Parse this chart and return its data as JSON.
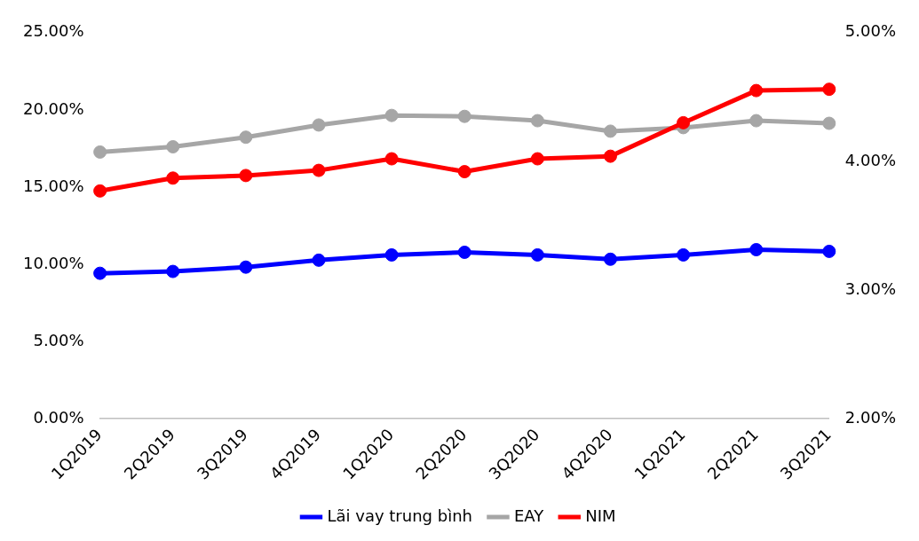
{
  "chart_data": {
    "type": "line",
    "categories": [
      "1Q2019",
      "2Q2019",
      "3Q2019",
      "4Q2019",
      "1Q2020",
      "2Q2020",
      "3Q2020",
      "4Q2020",
      "1Q2021",
      "2Q2021",
      "3Q2021"
    ],
    "series": [
      {
        "name": "Lãi vay trung bình",
        "color": "#0000ff",
        "values": [
          9.42,
          9.54,
          9.82,
          10.27,
          10.61,
          10.78,
          10.61,
          10.33,
          10.61,
          10.95,
          10.84
        ]
      },
      {
        "name": "EAY",
        "color": "#a6a6a6",
        "values": [
          17.27,
          17.61,
          18.23,
          19.02,
          19.64,
          19.58,
          19.3,
          18.62,
          18.85,
          19.3,
          19.13
        ]
      },
      {
        "name": "NIM",
        "color": "#ff0000",
        "axis": "y2",
        "values": [
          3.77,
          3.87,
          3.89,
          3.93,
          4.02,
          3.92,
          4.02,
          4.04,
          4.3,
          4.55,
          4.56
        ]
      }
    ],
    "ylim": [
      0,
      25
    ],
    "yticks": [
      {
        "value": 0,
        "label": "0.00%"
      },
      {
        "value": 5,
        "label": "5.00%"
      },
      {
        "value": 10,
        "label": "10.00%"
      },
      {
        "value": 15,
        "label": "15.00%"
      },
      {
        "value": 20,
        "label": "20.00%"
      },
      {
        "value": 25,
        "label": "25.00%"
      }
    ],
    "y2lim": [
      2,
      5
    ],
    "y2ticks": [
      {
        "value": 2,
        "label": "2.00%"
      },
      {
        "value": 3,
        "label": "3.00%"
      },
      {
        "value": 4,
        "label": "4.00%"
      },
      {
        "value": 5,
        "label": "5.00%"
      }
    ],
    "grid": false,
    "legend": "bottom",
    "marker": "circle",
    "line_style": "solid"
  }
}
